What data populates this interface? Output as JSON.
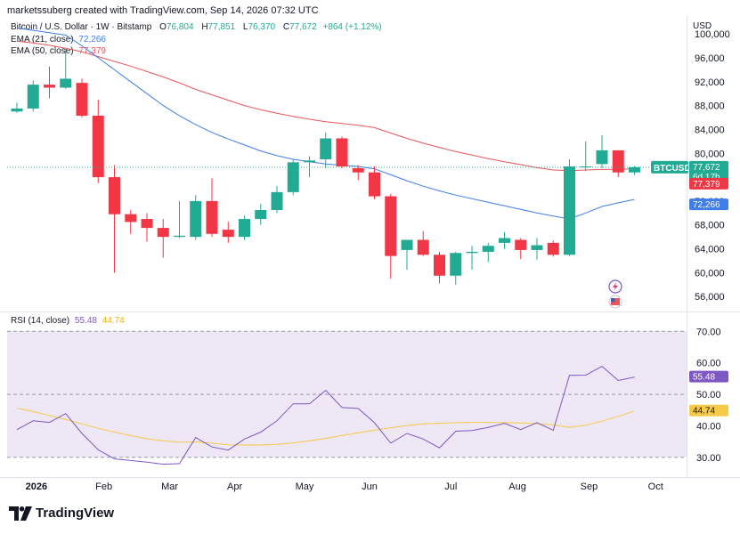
{
  "header": {
    "author_line": "marketssuberg created with TradingView.com, Sep 14, 2026 07:32 UTC"
  },
  "price_legend": {
    "symbol": "Bitcoin / U.S. Dollar · 1W · Bitstamp",
    "o_label": "O",
    "o_value": "76,804",
    "h_label": "H",
    "h_value": "77,851",
    "l_label": "L",
    "l_value": "76,370",
    "c_label": "C",
    "c_value": "77,672",
    "change": "+864 (+1.12%)"
  },
  "ema21": {
    "label": "EMA (21, close)",
    "value": "72,266",
    "color": "#3f7ee8"
  },
  "ema50": {
    "label": "EMA (50, close)",
    "value": "77,379",
    "color": "#e8555a"
  },
  "rsi_legend": {
    "label": "RSI (14, close)",
    "value": "55.48",
    "ma_value": "44.74"
  },
  "currency": "USD",
  "badges": {
    "ticker": "BTCUSD",
    "price": "77,672",
    "countdown": "6d 17h",
    "ema50": "77,379",
    "ema21": "72,266",
    "rsi": "55.48",
    "rsi_ma": "44.74"
  },
  "brand": "TradingView",
  "colors": {
    "up": "#22ab94",
    "down": "#f23645",
    "ema21": "#3f7ee8",
    "ema50": "#e8555a",
    "rsi": "#7e57c2",
    "rsi_ma": "#f7c948",
    "rsi_band": "#ede7f6"
  },
  "chart_data": [
    {
      "type": "candlestick",
      "title": "Bitcoin / U.S. Dollar · 1W · Bitstamp",
      "x_ticks": [
        "2026",
        "Feb",
        "Mar",
        "Apr",
        "May",
        "Jun",
        "Jul",
        "Aug",
        "Sep",
        "Oct"
      ],
      "y_ticks": [
        "100,000",
        "96,000",
        "92,000",
        "88,000",
        "84,000",
        "80,000",
        "76,000",
        "72,000",
        "68,000",
        "64,000",
        "60,000",
        "56,000"
      ],
      "ylim": [
        53500,
        103000
      ],
      "candles": [
        {
          "o": 87000,
          "h": 88500,
          "l": 86800,
          "c": 87500
        },
        {
          "o": 87500,
          "h": 92200,
          "l": 87000,
          "c": 91500
        },
        {
          "o": 91500,
          "h": 94500,
          "l": 89200,
          "c": 91000
        },
        {
          "o": 91000,
          "h": 97500,
          "l": 90800,
          "c": 92500
        },
        {
          "o": 91800,
          "h": 92500,
          "l": 86000,
          "c": 86300
        },
        {
          "o": 86300,
          "h": 89000,
          "l": 75000,
          "c": 76000
        },
        {
          "o": 76000,
          "h": 78000,
          "l": 60000,
          "c": 69800
        },
        {
          "o": 69800,
          "h": 70500,
          "l": 66500,
          "c": 68500
        },
        {
          "o": 69000,
          "h": 70000,
          "l": 65200,
          "c": 67500
        },
        {
          "o": 67500,
          "h": 69000,
          "l": 62500,
          "c": 66000
        },
        {
          "o": 66000,
          "h": 72000,
          "l": 65800,
          "c": 66200
        },
        {
          "o": 66000,
          "h": 73000,
          "l": 65500,
          "c": 72000
        },
        {
          "o": 72000,
          "h": 75800,
          "l": 66000,
          "c": 66500
        },
        {
          "o": 67200,
          "h": 68500,
          "l": 65000,
          "c": 66000
        },
        {
          "o": 66000,
          "h": 69500,
          "l": 65500,
          "c": 69000
        },
        {
          "o": 69000,
          "h": 71500,
          "l": 68000,
          "c": 70500
        },
        {
          "o": 70500,
          "h": 74500,
          "l": 70000,
          "c": 73500
        },
        {
          "o": 73500,
          "h": 79000,
          "l": 73000,
          "c": 78500
        },
        {
          "o": 78500,
          "h": 79500,
          "l": 76000,
          "c": 78800
        },
        {
          "o": 79000,
          "h": 83500,
          "l": 77500,
          "c": 82500
        },
        {
          "o": 82500,
          "h": 82800,
          "l": 77500,
          "c": 77800
        },
        {
          "o": 77500,
          "h": 78000,
          "l": 75500,
          "c": 76800
        },
        {
          "o": 76800,
          "h": 77800,
          "l": 72300,
          "c": 72800
        },
        {
          "o": 72800,
          "h": 73200,
          "l": 59000,
          "c": 62800
        },
        {
          "o": 63800,
          "h": 65500,
          "l": 60500,
          "c": 65500
        },
        {
          "o": 65500,
          "h": 67000,
          "l": 62800,
          "c": 63000
        },
        {
          "o": 63000,
          "h": 63500,
          "l": 58200,
          "c": 59500
        },
        {
          "o": 59500,
          "h": 63500,
          "l": 58000,
          "c": 63300
        },
        {
          "o": 63300,
          "h": 64500,
          "l": 60500,
          "c": 63500
        },
        {
          "o": 63500,
          "h": 65000,
          "l": 61800,
          "c": 64500
        },
        {
          "o": 65000,
          "h": 66800,
          "l": 64000,
          "c": 65800
        },
        {
          "o": 65500,
          "h": 65800,
          "l": 62300,
          "c": 63800
        },
        {
          "o": 63800,
          "h": 65800,
          "l": 62200,
          "c": 64600
        },
        {
          "o": 65000,
          "h": 65400,
          "l": 62700,
          "c": 63000
        },
        {
          "o": 63000,
          "h": 79000,
          "l": 62800,
          "c": 77800
        },
        {
          "o": 77800,
          "h": 82000,
          "l": 77000,
          "c": 77800
        },
        {
          "o": 78200,
          "h": 83000,
          "l": 77500,
          "c": 80500
        },
        {
          "o": 80500,
          "h": 80500,
          "l": 76000,
          "c": 76800
        },
        {
          "o": 76800,
          "h": 77851,
          "l": 76370,
          "c": 77672
        }
      ],
      "series": [
        {
          "name": "EMA (21, close)",
          "values": [
            101000,
            100600,
            100200,
            99800,
            98000,
            96000,
            94000,
            92000,
            90000,
            88000,
            86300,
            84800,
            83500,
            82400,
            81400,
            80400,
            79600,
            79000,
            78600,
            78200,
            78000,
            77800,
            77400,
            76400,
            75400,
            74500,
            73700,
            73000,
            72400,
            71800,
            71200,
            70600,
            70000,
            69500,
            69000,
            70000,
            71100,
            71700,
            72266
          ]
        },
        {
          "name": "EMA (50, close)",
          "values": [
            98800,
            98500,
            98100,
            97600,
            97000,
            96200,
            95400,
            94600,
            93700,
            92800,
            91800,
            90700,
            89800,
            88900,
            88000,
            87300,
            86700,
            86200,
            85700,
            85300,
            85000,
            84700,
            84300,
            83400,
            82500,
            81700,
            81000,
            80300,
            79700,
            79100,
            78600,
            78100,
            77600,
            77200,
            77100,
            77200,
            77300,
            77340,
            77379
          ]
        }
      ]
    },
    {
      "type": "line",
      "title": "RSI (14, close)",
      "y_ticks": [
        "70.00",
        "60.00",
        "50.00",
        "40.00",
        "30.00"
      ],
      "ylim": [
        26,
        71.5
      ],
      "bands": [
        30,
        50,
        70
      ],
      "series": [
        {
          "name": "RSI (14, close)",
          "values": [
            38.8,
            41.6,
            41.1,
            43.9,
            37.6,
            32.4,
            29.5,
            29.0,
            28.5,
            27.8,
            28.0,
            36.3,
            33.3,
            32.3,
            35.8,
            38.0,
            41.6,
            47.0,
            47.0,
            51.3,
            45.8,
            45.5,
            41.0,
            34.5,
            37.6,
            35.8,
            33.0,
            38.3,
            38.5,
            39.5,
            40.8,
            38.8,
            41.0,
            38.6,
            56.0,
            56.1,
            58.9,
            54.4,
            55.48
          ]
        },
        {
          "name": "RSI MA",
          "values": [
            45.6,
            44.5,
            43.3,
            42.0,
            40.6,
            39.2,
            38.0,
            36.9,
            35.9,
            35.2,
            34.8,
            34.9,
            34.5,
            34.0,
            33.9,
            33.9,
            34.1,
            34.6,
            35.2,
            36.0,
            36.9,
            37.8,
            38.6,
            39.4,
            40.1,
            40.6,
            40.8,
            41.0,
            41.1,
            41.1,
            41.0,
            40.9,
            40.7,
            40.3,
            39.5,
            40.2,
            41.5,
            43.0,
            44.74
          ]
        }
      ]
    }
  ]
}
